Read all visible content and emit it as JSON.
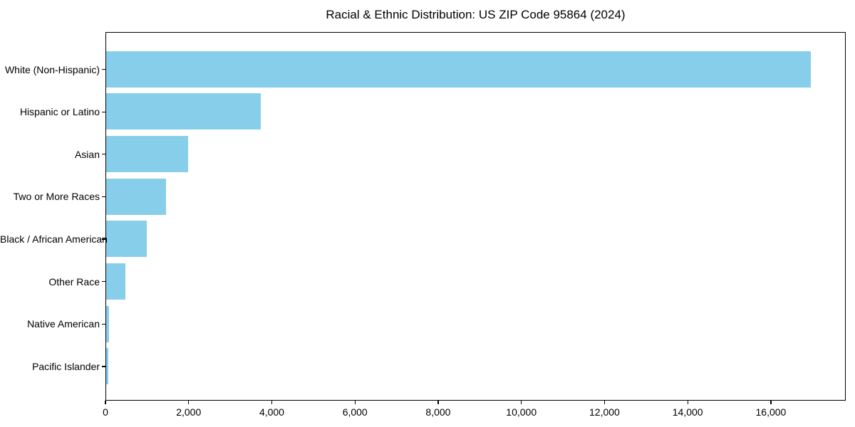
{
  "chart_data": {
    "type": "bar",
    "orientation": "horizontal",
    "title": "Racial & Ethnic Distribution: US ZIP Code 95864 (2024)",
    "categories": [
      "White (Non-Hispanic)",
      "Hispanic or Latino",
      "Asian",
      "Two or More Races",
      "Black / African American",
      "Other Race",
      "Native American",
      "Pacific Islander"
    ],
    "values": [
      16940,
      3720,
      1970,
      1440,
      975,
      460,
      65,
      50
    ],
    "xlabel": "",
    "ylabel": "",
    "xlim": [
      0,
      17800
    ],
    "xticks": [
      0,
      2000,
      4000,
      6000,
      8000,
      10000,
      12000,
      14000,
      16000
    ],
    "xtick_labels": [
      "0",
      "2,000",
      "4,000",
      "6,000",
      "8,000",
      "10,000",
      "12,000",
      "14,000",
      "16,000"
    ],
    "bar_color": "#87CEEB",
    "axis_color": "#000000",
    "background_color": "#FFFFFF",
    "grid": false,
    "legend": null
  }
}
